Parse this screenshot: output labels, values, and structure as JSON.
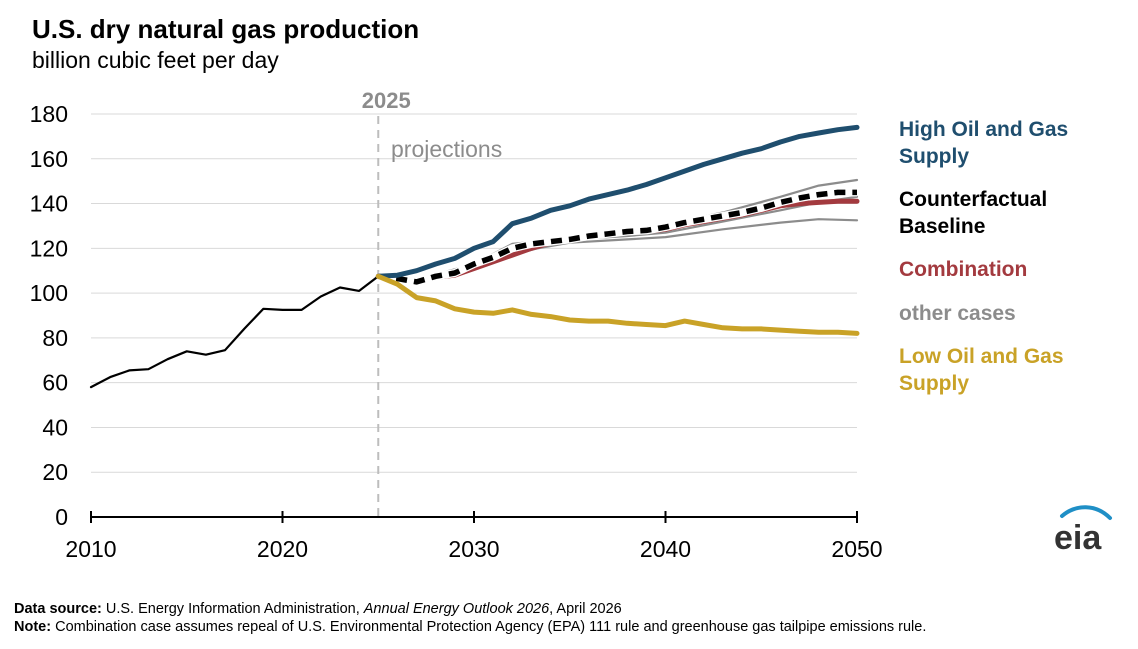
{
  "title": "U.S. dry natural gas production",
  "subtitle": "billion cubic feet per day",
  "colors": {
    "history": "#000000",
    "high": "#1f4e6e",
    "baseline": "#000000",
    "combination": "#a33a3f",
    "other": "#8c8c8c",
    "low": "#c9a227",
    "divider": "#bdbdbd",
    "annotation": "#8c8c8c"
  },
  "chart_data": {
    "type": "line",
    "title": "U.S. dry natural gas production",
    "ylabel": "billion cubic feet per day",
    "xlabel": "",
    "xlim": [
      2010,
      2050
    ],
    "ylim": [
      0,
      180
    ],
    "xticks": [
      2010,
      2020,
      2030,
      2040,
      2050
    ],
    "yticks": [
      0,
      20,
      40,
      60,
      80,
      100,
      120,
      140,
      160,
      180
    ],
    "grid": true,
    "divider": {
      "x": 2025,
      "label": "2025",
      "annotation": "projections"
    },
    "legend_placement": "right",
    "series": [
      {
        "name": "history",
        "key": "history",
        "style": "solid",
        "x": [
          2010,
          2011,
          2012,
          2013,
          2014,
          2015,
          2016,
          2017,
          2018,
          2019,
          2020,
          2021,
          2022,
          2023,
          2024,
          2025
        ],
        "y": [
          58,
          62.5,
          65.5,
          66,
          70.5,
          74,
          72.5,
          74.5,
          84,
          93,
          92.5,
          92.5,
          98.5,
          102.5,
          101,
          107.5
        ]
      },
      {
        "name": "other cases",
        "key": "other",
        "style": "thin",
        "x": [
          2025,
          2027,
          2030,
          2032,
          2035,
          2038,
          2040,
          2043,
          2046,
          2048,
          2050
        ],
        "y": [
          107.5,
          106,
          113,
          122,
          124.5,
          128,
          130.5,
          136,
          143,
          148,
          150.5
        ]
      },
      {
        "name": "other cases",
        "key": "other",
        "style": "thin",
        "x": [
          2025,
          2027,
          2030,
          2032,
          2035,
          2038,
          2040,
          2043,
          2046,
          2048,
          2050
        ],
        "y": [
          107.5,
          105,
          112,
          117,
          124,
          125.5,
          127,
          132,
          137,
          140.5,
          143
        ]
      },
      {
        "name": "other cases",
        "key": "other",
        "style": "thin",
        "x": [
          2025,
          2027,
          2030,
          2032,
          2035,
          2038,
          2040,
          2043,
          2046,
          2048,
          2050
        ],
        "y": [
          107.5,
          104.5,
          111.5,
          118,
          122.5,
          124,
          125,
          128.5,
          131.5,
          133,
          132.5
        ]
      },
      {
        "name": "Combination",
        "key": "combination",
        "style": "thick",
        "x": [
          2025,
          2026,
          2027,
          2028,
          2029,
          2030,
          2031,
          2032,
          2033,
          2034,
          2035,
          2036,
          2037,
          2038,
          2039,
          2040,
          2041,
          2042,
          2043,
          2044,
          2045,
          2046,
          2047,
          2048,
          2049,
          2050
        ],
        "y": [
          107.5,
          107,
          105,
          107,
          108,
          111,
          114,
          117,
          120,
          122.5,
          124,
          125.5,
          126.5,
          127,
          127.5,
          128.5,
          130.5,
          132,
          133.5,
          135,
          137,
          139,
          140,
          140.5,
          141,
          141
        ]
      },
      {
        "name": "Counterfactual Baseline",
        "key": "baseline",
        "style": "dashed",
        "x": [
          2025,
          2026,
          2027,
          2028,
          2029,
          2030,
          2031,
          2032,
          2033,
          2034,
          2035,
          2036,
          2037,
          2038,
          2039,
          2040,
          2041,
          2042,
          2043,
          2044,
          2045,
          2046,
          2047,
          2048,
          2049,
          2050
        ],
        "y": [
          107.5,
          106.5,
          105,
          107.5,
          109,
          113,
          116,
          120,
          122,
          123,
          124,
          125.5,
          126.5,
          127.5,
          128,
          129.5,
          131.5,
          133,
          134.5,
          136,
          138,
          140.5,
          142.5,
          144,
          145,
          145
        ]
      },
      {
        "name": "High Oil and Gas Supply",
        "key": "high",
        "style": "thick",
        "x": [
          2025,
          2026,
          2027,
          2028,
          2029,
          2030,
          2031,
          2032,
          2033,
          2034,
          2035,
          2036,
          2037,
          2038,
          2039,
          2040,
          2041,
          2042,
          2043,
          2044,
          2045,
          2046,
          2047,
          2048,
          2049,
          2050
        ],
        "y": [
          107.5,
          108,
          110,
          113,
          115.5,
          120,
          123,
          131,
          133.5,
          137,
          139,
          142,
          144,
          146,
          148.5,
          151.5,
          154.5,
          157.5,
          160,
          162.5,
          164.5,
          167.5,
          170,
          171.5,
          173,
          174
        ]
      },
      {
        "name": "Low Oil and Gas Supply",
        "key": "low",
        "style": "thick",
        "x": [
          2025,
          2026,
          2027,
          2028,
          2029,
          2030,
          2031,
          2032,
          2033,
          2034,
          2035,
          2036,
          2037,
          2038,
          2039,
          2040,
          2041,
          2042,
          2043,
          2044,
          2045,
          2046,
          2047,
          2048,
          2049,
          2050
        ],
        "y": [
          107.5,
          104,
          98,
          96.5,
          93,
          91.5,
          91,
          92.5,
          90.5,
          89.5,
          88,
          87.5,
          87.5,
          86.5,
          86,
          85.5,
          87.5,
          86,
          84.5,
          84,
          84,
          83.5,
          83,
          82.5,
          82.5,
          82
        ]
      }
    ],
    "legend": [
      {
        "text": "High Oil and Gas Supply",
        "key": "high"
      },
      {
        "text": "Counterfactual Baseline",
        "key": "baseline"
      },
      {
        "text": "Combination",
        "key": "combination"
      },
      {
        "text": "other cases",
        "key": "other"
      },
      {
        "text": "Low Oil and Gas Supply",
        "key": "low"
      }
    ]
  },
  "footer": {
    "source_label": "Data source:",
    "source_text_1": " U.S. Energy Information Administration, ",
    "source_text_italic": "Annual Energy Outlook 2026",
    "source_text_2": ", April 2026",
    "note_label": "Note:",
    "note_text": " Combination case assumes repeal of U.S. Environmental Protection Agency (EPA) 111 rule and greenhouse gas tailpipe emissions rule."
  },
  "logo": {
    "text": "eia",
    "colors": {
      "text": "#333333",
      "swoosh": "#1f8fc6"
    }
  }
}
